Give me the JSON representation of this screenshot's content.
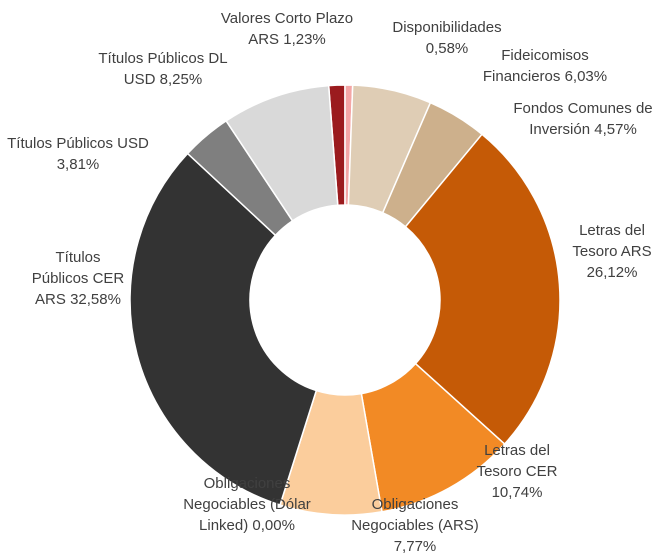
{
  "chart_data": {
    "type": "donut",
    "categories": [
      "Valores Corto Plazo ARS",
      "Disponibilidades",
      "Fideicomisos Financieros",
      "Fondos Comunes de Inversión",
      "Letras del Tesoro ARS",
      "Letras del Tesoro CER",
      "Obligaciones Negociables (ARS)",
      "Obligaciones Negociables (Dólar Linked)",
      "Títulos Públicos CER ARS",
      "Títulos Públicos USD",
      "Títulos Públicos DL USD"
    ],
    "values": [
      1.23,
      0.58,
      6.03,
      4.57,
      26.12,
      10.74,
      7.77,
      0.0,
      32.58,
      3.81,
      8.25
    ],
    "value_labels": [
      "1,23%",
      "0,58%",
      "6,03%",
      "4,57%",
      "26,12%",
      "10,74%",
      "7,77%",
      "0,00%",
      "32,58%",
      "3,81%",
      "8,25%"
    ],
    "colors": [
      "#9b1b1e",
      "#f4a6a6",
      "#dfcdb5",
      "#cdb08c",
      "#c55a06",
      "#f28a25",
      "#fbcd9c",
      "#f8b26a",
      "#333333",
      "#7f7f7f",
      "#d9d9d9"
    ]
  }
}
